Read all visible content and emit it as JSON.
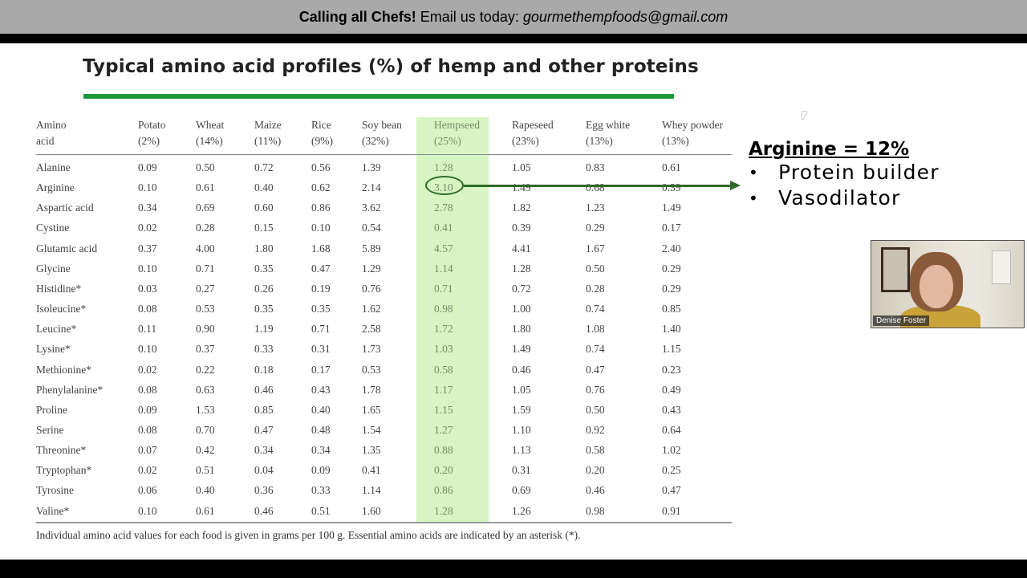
{
  "banner": {
    "bold": "Calling all Chefs!",
    "text": "Email us today:",
    "email": "gourmethempfoods@gmail.com"
  },
  "slide": {
    "title": "Typical amino acid profiles (%) of hemp and other proteins",
    "footnote": "Individual amino acid values for each food is given in grams per 100 g. Essential amino acids are indicated by an asterisk (*)."
  },
  "table": {
    "columns": [
      {
        "name": "Amino",
        "sub": "acid"
      },
      {
        "name": "Potato",
        "sub": "(2%)"
      },
      {
        "name": "Wheat",
        "sub": "(14%)"
      },
      {
        "name": "Maize",
        "sub": "(11%)"
      },
      {
        "name": "Rice",
        "sub": "(9%)"
      },
      {
        "name": "Soy bean",
        "sub": "(32%)"
      },
      {
        "name": "Hempseed",
        "sub": "(25%)"
      },
      {
        "name": "Rapeseed",
        "sub": "(23%)"
      },
      {
        "name": "Egg white",
        "sub": "(13%)"
      },
      {
        "name": "Whey powder",
        "sub": "(13%)"
      }
    ],
    "rows": [
      [
        "Alanine",
        "0.09",
        "0.50",
        "0.72",
        "0.56",
        "1.39",
        "1.28",
        "1.05",
        "0.83",
        "0.61"
      ],
      [
        "Arginine",
        "0.10",
        "0.61",
        "0.40",
        "0.62",
        "2.14",
        "3.10",
        "1.49",
        "0.68",
        "0.39"
      ],
      [
        "Aspartic acid",
        "0.34",
        "0.69",
        "0.60",
        "0.86",
        "3.62",
        "2.78",
        "1.82",
        "1.23",
        "1.49"
      ],
      [
        "Cystine",
        "0.02",
        "0.28",
        "0.15",
        "0.10",
        "0.54",
        "0.41",
        "0.39",
        "0.29",
        "0.17"
      ],
      [
        "Glutamic acid",
        "0.37",
        "4.00",
        "1.80",
        "1.68",
        "5.89",
        "4.57",
        "4.41",
        "1.67",
        "2.40"
      ],
      [
        "Glycine",
        "0.10",
        "0.71",
        "0.35",
        "0.47",
        "1.29",
        "1.14",
        "1.28",
        "0.50",
        "0.29"
      ],
      [
        "Histidine*",
        "0.03",
        "0.27",
        "0.26",
        "0.19",
        "0.76",
        "0.71",
        "0.72",
        "0.28",
        "0.29"
      ],
      [
        "Isoleucine*",
        "0.08",
        "0.53",
        "0.35",
        "0.35",
        "1.62",
        "0.98",
        "1.00",
        "0.74",
        "0.85"
      ],
      [
        "Leucine*",
        "0.11",
        "0.90",
        "1.19",
        "0.71",
        "2.58",
        "1.72",
        "1.80",
        "1.08",
        "1.40"
      ],
      [
        "Lysine*",
        "0.10",
        "0.37",
        "0.33",
        "0.31",
        "1.73",
        "1.03",
        "1.49",
        "0.74",
        "1.15"
      ],
      [
        "Methionine*",
        "0.02",
        "0.22",
        "0.18",
        "0.17",
        "0.53",
        "0.58",
        "0.46",
        "0.47",
        "0.23"
      ],
      [
        "Phenylalanine*",
        "0.08",
        "0.63",
        "0.46",
        "0.43",
        "1.78",
        "1.17",
        "1.05",
        "0.76",
        "0.49"
      ],
      [
        "Proline",
        "0.09",
        "1.53",
        "0.85",
        "0.40",
        "1.65",
        "1.15",
        "1.59",
        "0.50",
        "0.43"
      ],
      [
        "Serine",
        "0.08",
        "0.70",
        "0.47",
        "0.48",
        "1.54",
        "1.27",
        "1.10",
        "0.92",
        "0.64"
      ],
      [
        "Threonine*",
        "0.07",
        "0.42",
        "0.34",
        "0.34",
        "1.35",
        "0.88",
        "1.13",
        "0.58",
        "1.02"
      ],
      [
        "Tryptophan*",
        "0.02",
        "0.51",
        "0.04",
        "0.09",
        "0.41",
        "0.20",
        "0.31",
        "0.20",
        "0.25"
      ],
      [
        "Tyrosine",
        "0.06",
        "0.40",
        "0.36",
        "0.33",
        "1.14",
        "0.86",
        "0.69",
        "0.46",
        "0.47"
      ],
      [
        "Valine*",
        "0.10",
        "0.61",
        "0.46",
        "0.51",
        "1.60",
        "1.28",
        "1.26",
        "0.98",
        "0.91"
      ]
    ],
    "highlighted_column": "Hempseed"
  },
  "annotation": {
    "title": "Arginine = 12%",
    "bullets": [
      "Protein builder",
      "Vasodilator"
    ],
    "accent_color": "#2f6b2a"
  },
  "video": {
    "participant_name": "Denise Foster"
  },
  "icons": [
    "mouse-cursor-icon",
    "arrow-icon"
  ]
}
